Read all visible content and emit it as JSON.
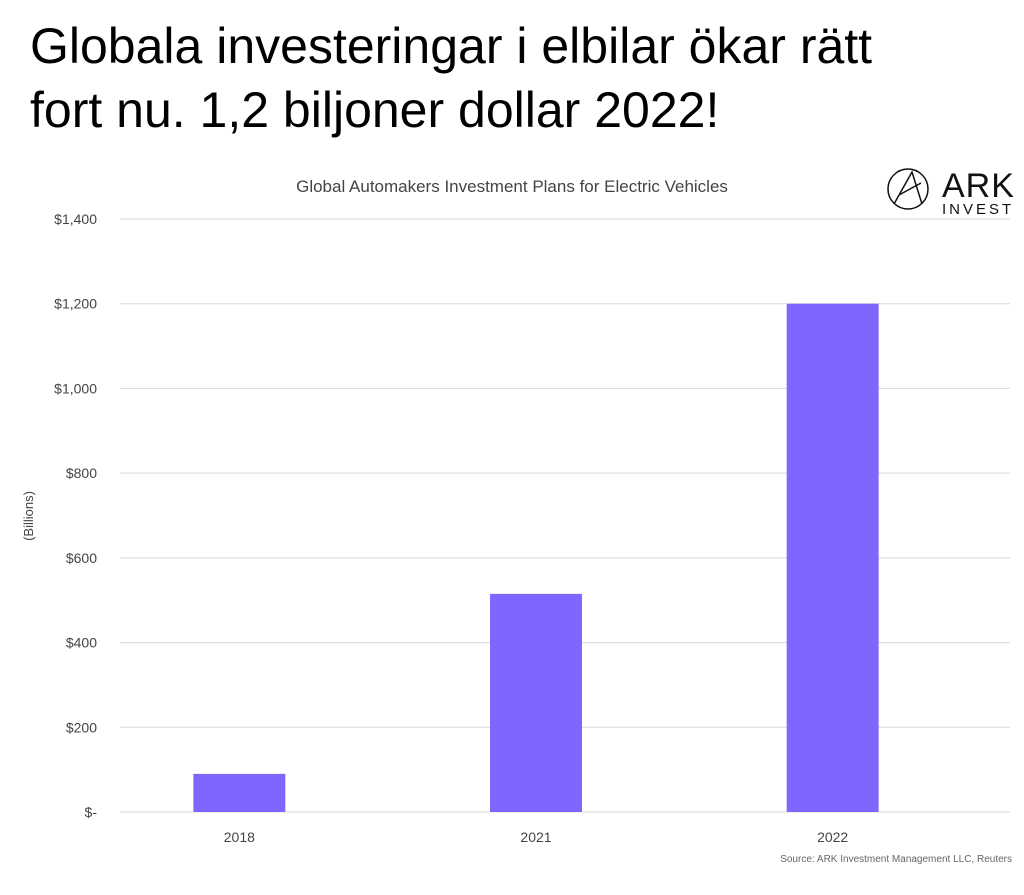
{
  "headline": {
    "line1": "Globala investeringar i elbilar ökar rätt",
    "line2": "fort nu. 1,2 biljoner dollar 2022!"
  },
  "logo": {
    "name": "ARK",
    "sub": "INVEST",
    "icon": "ark-compass-icon"
  },
  "source": "Source: ARK Investment Management LLC, Reuters",
  "colors": {
    "bar": "#8066ff",
    "grid": "#d9d9d9",
    "text": "#444444"
  },
  "chart_data": {
    "type": "bar",
    "title": "Global Automakers Investment Plans for Electric Vehicles",
    "ylabel": "(Billions)",
    "xlabel": "",
    "categories": [
      "2018",
      "2021",
      "2022"
    ],
    "values": [
      90,
      515,
      1200
    ],
    "ylim": [
      0,
      1400
    ],
    "yticks": [
      0,
      200,
      400,
      600,
      800,
      1000,
      1200,
      1400
    ],
    "ytick_labels": [
      "$-",
      "$200",
      "$400",
      "$600",
      "$800",
      "$1,000",
      "$1,200",
      "$1,400"
    ],
    "grid": true,
    "legend": "none"
  }
}
